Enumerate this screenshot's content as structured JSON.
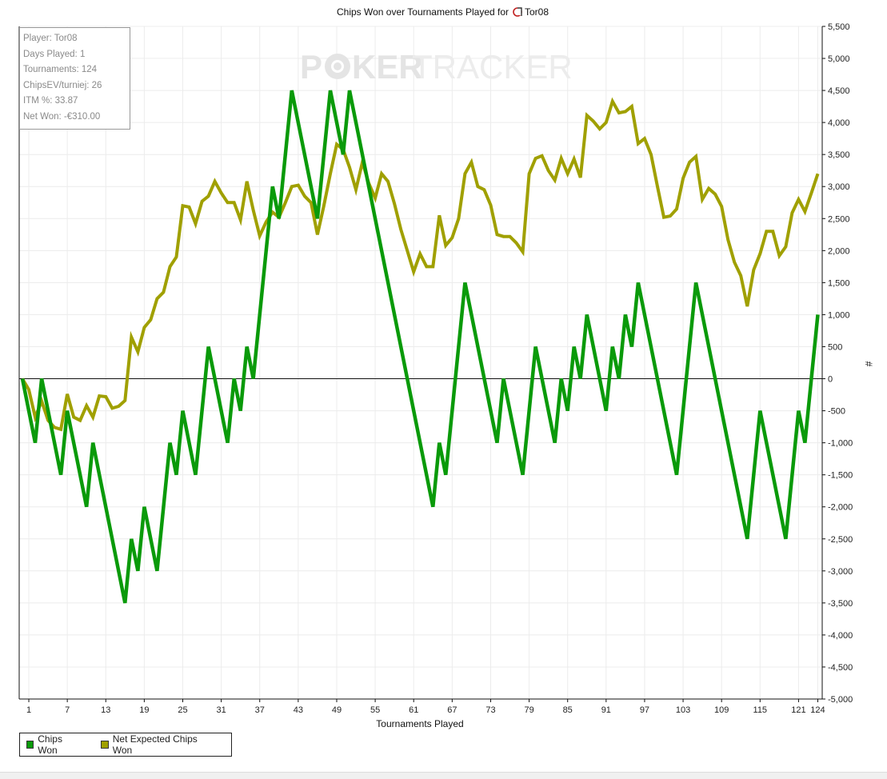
{
  "chart_data": {
    "type": "line",
    "title": "Chips Won over Tournaments Played for",
    "player_name": "Tor08",
    "xlabel": "Tournaments Played",
    "ylabel": "#",
    "xlim": [
      0,
      124
    ],
    "ylim": [
      -5000,
      5500
    ],
    "x_ticks": [
      1,
      7,
      13,
      19,
      25,
      31,
      37,
      43,
      49,
      55,
      61,
      67,
      73,
      79,
      85,
      91,
      97,
      103,
      109,
      115,
      121,
      124
    ],
    "y_ticks": [
      "5,500",
      "5,000",
      "4,500",
      "4,000",
      "3,500",
      "3,000",
      "2,500",
      "2,000",
      "1,500",
      "1,000",
      "500",
      "0",
      "-500",
      "-1,000",
      "-1,500",
      "-2,000",
      "-2,500",
      "-3,000",
      "-3,500",
      "-4,000",
      "-4,500",
      "-5,000"
    ],
    "y_tick_values": [
      5500,
      5000,
      4500,
      4000,
      3500,
      3000,
      2500,
      2000,
      1500,
      1000,
      500,
      0,
      -500,
      -1000,
      -1500,
      -2000,
      -2500,
      -3000,
      -3500,
      -4000,
      -4500,
      -5000
    ],
    "grid": true,
    "legend_position": "bottom-left",
    "series": [
      {
        "name": "Chips Won",
        "color": "#0a9a0a",
        "points": [
          [
            0,
            0
          ],
          [
            2,
            -1000
          ],
          [
            3,
            0
          ],
          [
            6,
            -1500
          ],
          [
            7,
            -500
          ],
          [
            10,
            -2000
          ],
          [
            11,
            -1000
          ],
          [
            16,
            -3500
          ],
          [
            17,
            -2500
          ],
          [
            18,
            -3000
          ],
          [
            19,
            -2000
          ],
          [
            21,
            -3000
          ],
          [
            23,
            -1000
          ],
          [
            24,
            -1500
          ],
          [
            25,
            -500
          ],
          [
            27,
            -1500
          ],
          [
            29,
            500
          ],
          [
            32,
            -1000
          ],
          [
            33,
            0
          ],
          [
            34,
            -500
          ],
          [
            35,
            500
          ],
          [
            36,
            0
          ],
          [
            39,
            3000
          ],
          [
            40,
            2500
          ],
          [
            42,
            4500
          ],
          [
            46,
            2500
          ],
          [
            48,
            4500
          ],
          [
            50,
            3500
          ],
          [
            51,
            4500
          ],
          [
            64,
            -2000
          ],
          [
            65,
            -1000
          ],
          [
            66,
            -1500
          ],
          [
            69,
            1500
          ],
          [
            74,
            -1000
          ],
          [
            75,
            0
          ],
          [
            78,
            -1500
          ],
          [
            80,
            500
          ],
          [
            83,
            -1000
          ],
          [
            84,
            0
          ],
          [
            85,
            -500
          ],
          [
            86,
            500
          ],
          [
            87,
            0
          ],
          [
            88,
            1000
          ],
          [
            91,
            -500
          ],
          [
            92,
            500
          ],
          [
            93,
            0
          ],
          [
            94,
            1000
          ],
          [
            95,
            500
          ],
          [
            96,
            1500
          ],
          [
            102,
            -1500
          ],
          [
            105,
            1500
          ],
          [
            113,
            -2500
          ],
          [
            115,
            -500
          ],
          [
            119,
            -2500
          ],
          [
            121,
            -500
          ],
          [
            122,
            -1000
          ],
          [
            124,
            1000
          ]
        ]
      },
      {
        "name": "Net Expected Chips Won",
        "color": "#a0a000",
        "values": [
          0,
          -170,
          -600,
          -350,
          -650,
          -760,
          -790,
          -240,
          -600,
          -650,
          -420,
          -600,
          -270,
          -280,
          -460,
          -430,
          -340,
          650,
          420,
          800,
          920,
          1250,
          1350,
          1750,
          1900,
          2700,
          2680,
          2420,
          2770,
          2850,
          3080,
          2900,
          2750,
          2750,
          2480,
          3080,
          2630,
          2230,
          2450,
          2600,
          2520,
          2750,
          3000,
          3020,
          2850,
          2750,
          2250,
          2700,
          3200,
          3660,
          3580,
          3300,
          2950,
          3380,
          3050,
          2820,
          3200,
          3080,
          2730,
          2330,
          2000,
          1670,
          1950,
          1750,
          1750,
          2550,
          2080,
          2200,
          2500,
          3200,
          3380,
          3000,
          2950,
          2710,
          2250,
          2220,
          2220,
          2120,
          1980,
          3200,
          3440,
          3480,
          3250,
          3100,
          3440,
          3200,
          3430,
          3140,
          4110,
          4020,
          3900,
          4000,
          4330,
          4150,
          4170,
          4250,
          3670,
          3750,
          3500,
          3000,
          2520,
          2540,
          2650,
          3130,
          3380,
          3470,
          2800,
          2970,
          2880,
          2690,
          2170,
          1820,
          1610,
          1130,
          1700,
          1950,
          2300,
          2300,
          1920,
          2060,
          2590,
          2800,
          2610,
          2900,
          3200
        ]
      }
    ]
  },
  "watermark": {
    "part1": "P",
    "part2": "KER",
    "part3": "TRACKER"
  },
  "info_box": [
    "Player: Tor08",
    "Days Played: 1",
    "Tournaments: 124",
    "ChipsEV/turniej: 26",
    "ITM %: 33.87",
    "Net Won: -€310.00"
  ],
  "legend": [
    {
      "label": "Chips Won",
      "color": "#0a9a0a"
    },
    {
      "label": "Net Expected Chips Won",
      "color": "#a0a000"
    }
  ]
}
